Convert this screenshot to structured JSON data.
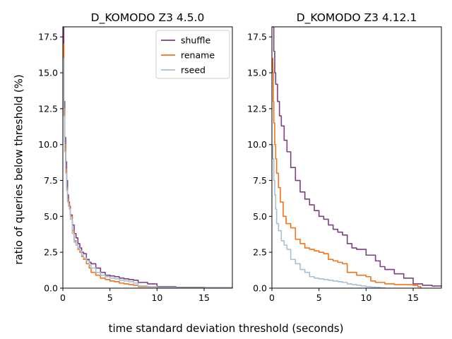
{
  "figure": {
    "xlabel": "time standard deviation threshold (seconds)",
    "ylabel": "ratio of queries below threshold (%)"
  },
  "chart_data": [
    {
      "type": "line",
      "title": "D_KOMODO Z3 4.5.0",
      "xlim": [
        0,
        18
      ],
      "ylim": [
        0,
        18.2
      ],
      "xticks": [
        "0",
        "5",
        "10",
        "15"
      ],
      "yticks": [
        "0.0",
        "2.5",
        "5.0",
        "7.5",
        "10.0",
        "12.5",
        "15.0",
        "17.5"
      ],
      "legend_position": "top-right",
      "series": [
        {
          "name": "shuffle",
          "color": "#7a3f7e",
          "x": [
            0,
            0.1,
            0.2,
            0.3,
            0.4,
            0.5,
            0.6,
            0.7,
            0.8,
            1.0,
            1.2,
            1.4,
            1.6,
            1.8,
            2.0,
            2.2,
            2.5,
            2.8,
            3.0,
            3.5,
            4.0,
            4.5,
            5.0,
            5.5,
            6.0,
            6.5,
            7.0,
            7.5,
            8.0,
            9.0,
            10.0,
            12.0,
            15.0,
            18.0
          ],
          "y": [
            18.2,
            13.0,
            10.5,
            8.8,
            7.5,
            6.5,
            6.0,
            5.7,
            5.1,
            4.4,
            3.8,
            3.5,
            3.1,
            2.8,
            2.5,
            2.4,
            2.0,
            1.8,
            1.7,
            1.4,
            1.1,
            0.9,
            0.85,
            0.8,
            0.7,
            0.65,
            0.6,
            0.55,
            0.4,
            0.3,
            0.1,
            0.05,
            0.03,
            0.0
          ]
        },
        {
          "name": "rename",
          "color": "#f07318",
          "x": [
            0,
            0.1,
            0.2,
            0.3,
            0.4,
            0.5,
            0.6,
            0.7,
            0.8,
            1.0,
            1.2,
            1.4,
            1.6,
            1.8,
            2.0,
            2.2,
            2.5,
            2.8,
            3.0,
            3.5,
            4.0,
            4.5,
            5.0,
            5.5,
            6.0,
            6.5,
            7.0,
            7.5,
            8.0,
            9.0,
            10.0,
            12.0,
            15.0,
            18.0
          ],
          "y": [
            17.0,
            12.5,
            10.0,
            8.3,
            7.0,
            6.2,
            5.9,
            5.6,
            5.0,
            4.0,
            3.3,
            3.0,
            2.7,
            2.5,
            2.2,
            2.0,
            1.7,
            1.4,
            1.1,
            0.9,
            0.7,
            0.6,
            0.5,
            0.45,
            0.35,
            0.3,
            0.25,
            0.2,
            0.1,
            0.08,
            0.05,
            0.02,
            0.01,
            0.0
          ]
        },
        {
          "name": "rseed",
          "color": "#a7bfd6",
          "x": [
            0,
            0.1,
            0.2,
            0.3,
            0.4,
            0.5,
            0.6,
            0.7,
            0.8,
            1.0,
            1.2,
            1.4,
            1.6,
            1.8,
            2.0,
            2.2,
            2.5,
            2.8,
            3.0,
            3.5,
            4.0,
            4.5,
            5.0,
            5.5,
            6.0,
            6.5,
            7.0,
            7.5,
            8.0,
            9.0,
            10.0,
            12.0,
            15.0,
            18.0
          ],
          "y": [
            16.0,
            12.0,
            9.5,
            8.0,
            6.8,
            6.0,
            5.7,
            5.5,
            4.8,
            3.8,
            3.2,
            3.0,
            2.8,
            2.6,
            2.3,
            2.1,
            1.9,
            1.6,
            1.4,
            1.1,
            0.9,
            0.8,
            0.7,
            0.65,
            0.55,
            0.5,
            0.45,
            0.35,
            0.15,
            0.1,
            0.05,
            0.02,
            0.01,
            0.0
          ]
        }
      ]
    },
    {
      "type": "line",
      "title": "D_KOMODO Z3 4.12.1",
      "xlim": [
        0,
        18
      ],
      "ylim": [
        0,
        18.2
      ],
      "xticks": [
        "0",
        "5",
        "10",
        "15"
      ],
      "yticks": [
        "0.0",
        "2.5",
        "5.0",
        "7.5",
        "10.0",
        "12.5",
        "15.0",
        "17.5"
      ],
      "series": [
        {
          "name": "shuffle",
          "color": "#7a3f7e",
          "x": [
            0.05,
            0.1,
            0.2,
            0.3,
            0.4,
            0.6,
            0.8,
            1.0,
            1.3,
            1.6,
            2.0,
            2.5,
            3.0,
            3.5,
            4.0,
            4.5,
            5.0,
            5.5,
            6.0,
            6.5,
            7.0,
            7.5,
            8.0,
            8.5,
            9.0,
            10.0,
            11.0,
            11.5,
            12.0,
            13.0,
            14.0,
            15.0,
            16.0,
            17.0,
            18.0
          ],
          "y": [
            18.2,
            18.2,
            16.5,
            15.0,
            14.2,
            13.0,
            12.0,
            11.3,
            10.3,
            9.5,
            8.4,
            7.5,
            6.7,
            6.2,
            5.8,
            5.4,
            5.0,
            4.8,
            4.4,
            4.1,
            3.9,
            3.7,
            3.1,
            2.8,
            2.7,
            2.3,
            1.9,
            1.5,
            1.3,
            1.0,
            0.7,
            0.3,
            0.2,
            0.15,
            0.1
          ]
        },
        {
          "name": "rename",
          "color": "#f07318",
          "x": [
            0.05,
            0.1,
            0.15,
            0.2,
            0.3,
            0.4,
            0.5,
            0.7,
            0.9,
            1.2,
            1.5,
            2.0,
            2.5,
            3.0,
            3.5,
            4.0,
            4.5,
            5.0,
            5.5,
            6.0,
            6.5,
            7.0,
            7.5,
            8.0,
            9.0,
            10.0,
            10.5,
            11.0,
            12.0,
            13.0,
            14.0,
            15.0,
            15.5,
            15.8
          ],
          "y": [
            16.0,
            15.0,
            13.0,
            11.5,
            10.0,
            9.0,
            8.0,
            7.0,
            6.0,
            5.0,
            4.5,
            4.2,
            3.4,
            3.1,
            2.8,
            2.7,
            2.6,
            2.5,
            2.4,
            2.0,
            1.9,
            1.8,
            1.7,
            1.1,
            0.9,
            0.8,
            0.5,
            0.4,
            0.3,
            0.25,
            0.25,
            0.2,
            0.1,
            0.0
          ]
        },
        {
          "name": "rseed",
          "color": "#a7bfd6",
          "x": [
            0.05,
            0.1,
            0.2,
            0.3,
            0.4,
            0.5,
            0.7,
            1.0,
            1.3,
            1.6,
            2.0,
            2.5,
            3.0,
            3.5,
            4.0,
            4.5,
            5.0,
            5.5,
            6.0,
            6.5,
            7.0,
            7.5,
            8.0,
            8.5,
            9.0,
            9.5,
            10.0,
            10.5,
            11.0,
            11.5,
            12.0
          ],
          "y": [
            10.0,
            9.0,
            7.5,
            6.5,
            5.5,
            4.5,
            4.0,
            3.3,
            3.0,
            2.7,
            2.0,
            1.7,
            1.3,
            1.1,
            0.8,
            0.7,
            0.65,
            0.6,
            0.55,
            0.5,
            0.45,
            0.4,
            0.3,
            0.25,
            0.2,
            0.15,
            0.1,
            0.07,
            0.05,
            0.02,
            0.0
          ]
        }
      ]
    }
  ]
}
